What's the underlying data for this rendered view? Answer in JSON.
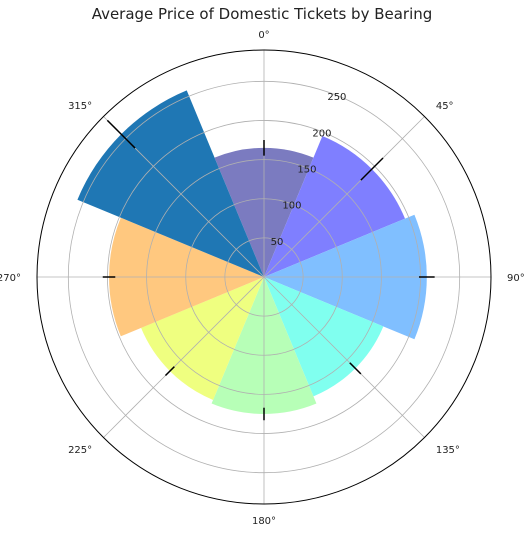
{
  "chart_data": {
    "type": "bar",
    "subtype": "polar",
    "title": "Average Price of Domestic Tickets by Bearing",
    "angular_ticks": [
      "0°",
      "45°",
      "90°",
      "135°",
      "180°",
      "225°",
      "270°",
      "315°"
    ],
    "radial_ticks": [
      50,
      100,
      150,
      200,
      250
    ],
    "rmax": 290,
    "grid": true,
    "direction": "clockwise",
    "zero_location": "top",
    "categories": [
      "0°",
      "45°",
      "90°",
      "135°",
      "180°",
      "225°",
      "270°",
      "315°"
    ],
    "values": [
      165,
      195,
      208,
      165,
      175,
      170,
      198,
      258
    ],
    "errors": [
      10,
      20,
      10,
      10,
      8,
      8,
      8,
      25
    ],
    "colors": [
      "#7b7bc0",
      "#7f7fff",
      "#80bfff",
      "#80ffef",
      "#b7ffb7",
      "#efff80",
      "#ffc87f",
      "#1f77b4"
    ]
  }
}
